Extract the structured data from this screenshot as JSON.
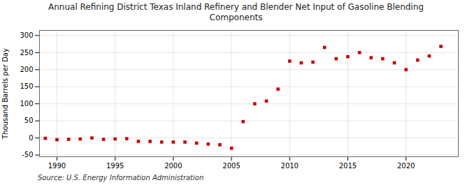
{
  "chart_data": {
    "type": "scatter",
    "title": "Annual Refining District Texas Inland Refinery and Blender Net Input of Gasoline Blending\nComponents",
    "ylabel": "Thousand Barrels per Day",
    "source": "Source: U.S. Energy Information Administration",
    "x": [
      1989,
      1990,
      1991,
      1992,
      1993,
      1994,
      1995,
      1996,
      1997,
      1998,
      1999,
      2000,
      2001,
      2002,
      2003,
      2004,
      2005,
      2006,
      2007,
      2008,
      2009,
      2010,
      2011,
      2012,
      2013,
      2014,
      2015,
      2016,
      2017,
      2018,
      2019,
      2020,
      2021,
      2022,
      2023
    ],
    "values": [
      -1,
      -5,
      -4,
      -3,
      0,
      -4,
      -3,
      -2,
      -10,
      -10,
      -12,
      -12,
      -12,
      -15,
      -18,
      -20,
      -30,
      48,
      100,
      108,
      143,
      225,
      220,
      222,
      265,
      232,
      238,
      250,
      235,
      232,
      220,
      200,
      228,
      240,
      268
    ],
    "color": "#cc0000",
    "marker": "square",
    "xlim": [
      1988.5,
      2024.5
    ],
    "ylim": [
      -55,
      315
    ],
    "xticks": [
      1990,
      1995,
      2000,
      2005,
      2010,
      2015,
      2020
    ],
    "yticks": [
      -50,
      0,
      50,
      100,
      150,
      200,
      250,
      300
    ],
    "grid": true
  }
}
